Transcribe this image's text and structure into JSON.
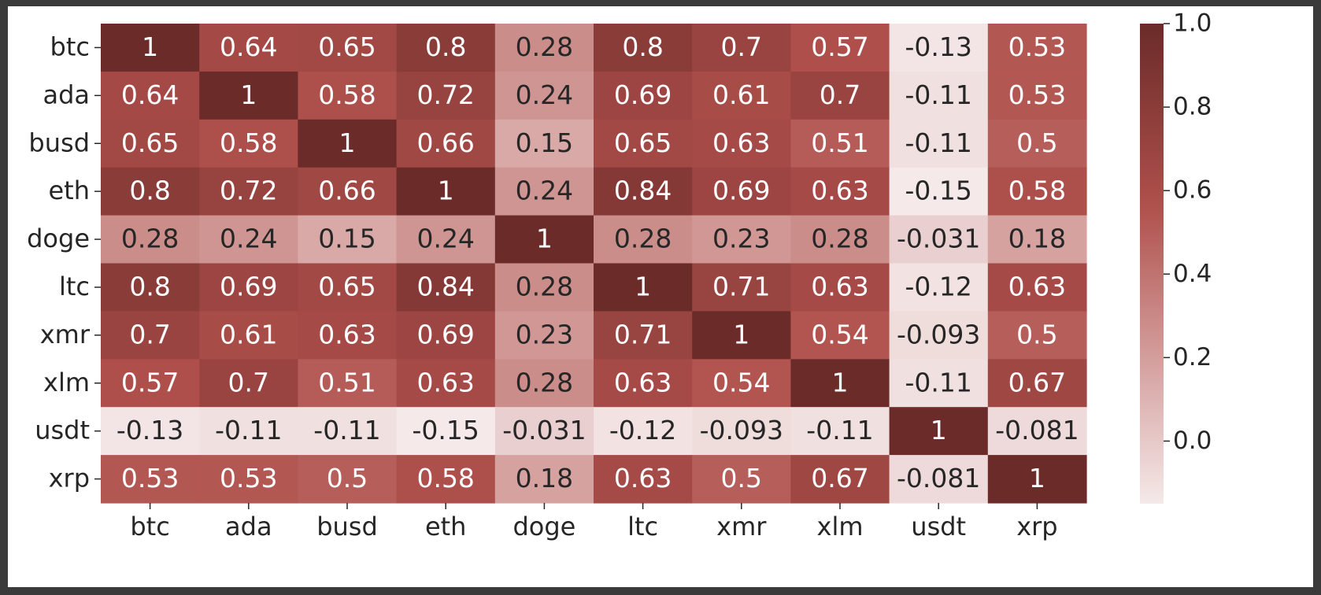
{
  "chart_data": {
    "type": "heatmap",
    "title": "",
    "xlabel": "",
    "ylabel": "",
    "x_categories": [
      "btc",
      "ada",
      "busd",
      "eth",
      "doge",
      "ltc",
      "xmr",
      "xlm",
      "usdt",
      "xrp"
    ],
    "y_categories": [
      "btc",
      "ada",
      "busd",
      "eth",
      "doge",
      "ltc",
      "xmr",
      "xlm",
      "usdt",
      "xrp"
    ],
    "values": [
      [
        1,
        0.64,
        0.65,
        0.8,
        0.28,
        0.8,
        0.7,
        0.57,
        -0.13,
        0.53
      ],
      [
        0.64,
        1,
        0.58,
        0.72,
        0.24,
        0.69,
        0.61,
        0.7,
        -0.11,
        0.53
      ],
      [
        0.65,
        0.58,
        1,
        0.66,
        0.15,
        0.65,
        0.63,
        0.51,
        -0.11,
        0.5
      ],
      [
        0.8,
        0.72,
        0.66,
        1,
        0.24,
        0.84,
        0.69,
        0.63,
        -0.15,
        0.58
      ],
      [
        0.28,
        0.24,
        0.15,
        0.24,
        1,
        0.28,
        0.23,
        0.28,
        -0.031,
        0.18
      ],
      [
        0.8,
        0.69,
        0.65,
        0.84,
        0.28,
        1,
        0.71,
        0.63,
        -0.12,
        0.63
      ],
      [
        0.7,
        0.61,
        0.63,
        0.69,
        0.23,
        0.71,
        1,
        0.54,
        -0.093,
        0.5
      ],
      [
        0.57,
        0.7,
        0.51,
        0.63,
        0.28,
        0.63,
        0.54,
        1,
        -0.11,
        0.67
      ],
      [
        -0.13,
        -0.11,
        -0.11,
        -0.15,
        -0.031,
        -0.12,
        -0.093,
        -0.11,
        1,
        -0.081
      ],
      [
        0.53,
        0.53,
        0.5,
        0.58,
        0.18,
        0.63,
        0.5,
        0.67,
        -0.081,
        1
      ]
    ],
    "value_range": [
      -0.15,
      1.0
    ],
    "colorbar": {
      "ticks": [
        0.0,
        0.2,
        0.4,
        0.6,
        0.8,
        1.0
      ],
      "tick_labels": [
        "0.0",
        "0.2",
        "0.4",
        "0.6",
        "0.8",
        "1.0"
      ],
      "placement": "right"
    },
    "colors": {
      "low": "#f5e9e9",
      "mid": "#b0504c",
      "high": "#6a2b29",
      "text_dark": "#262626",
      "text_light": "#ffffff"
    },
    "annotations": true,
    "grid": false
  }
}
